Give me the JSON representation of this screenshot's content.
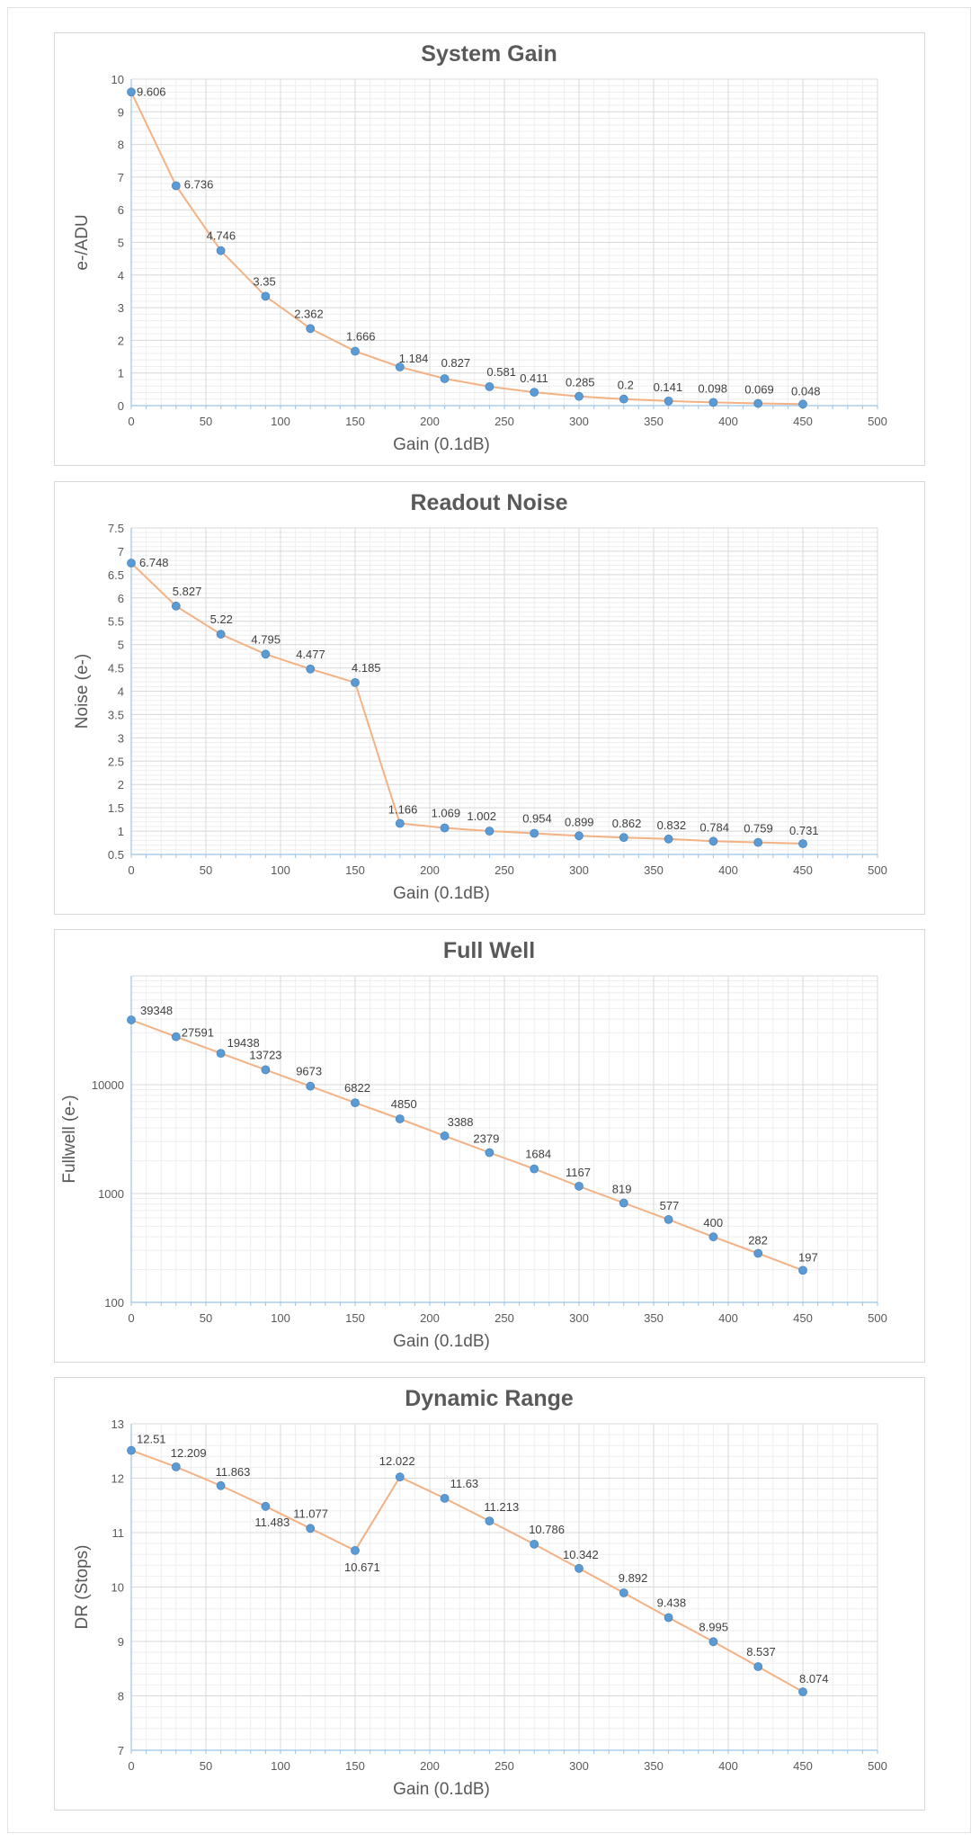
{
  "colors": {
    "line": "#f4b183",
    "marker": "#5b9bd5",
    "major_grid": "#d9d9d9",
    "minor_grid": "#eeeeee",
    "axis": "#9dc3e6",
    "text": "#595959"
  },
  "chart_data": [
    {
      "type": "line",
      "title": "System Gain",
      "xlabel": "Gain (0.1dB)",
      "ylabel": "e-/ADU",
      "yscale": "linear",
      "xlim": [
        0,
        500
      ],
      "ylim": [
        0,
        10
      ],
      "xticks": [
        0,
        50,
        100,
        150,
        200,
        250,
        300,
        350,
        400,
        450,
        500
      ],
      "yticks": [
        0,
        1,
        2,
        3,
        4,
        5,
        6,
        7,
        8,
        9,
        10
      ],
      "grid": true,
      "x": [
        0,
        30,
        60,
        90,
        120,
        150,
        180,
        210,
        240,
        270,
        300,
        330,
        360,
        390,
        420,
        450
      ],
      "values": [
        9.606,
        6.736,
        4.746,
        3.35,
        2.362,
        1.666,
        1.184,
        0.827,
        0.581,
        0.411,
        0.285,
        0.2,
        0.141,
        0.098,
        0.069,
        0.048
      ],
      "labels": [
        "9.606",
        "6.736",
        "4.746",
        "3.35",
        "2.362",
        "1.666",
        "1.184",
        "0.827",
        "0.581",
        "0.411",
        "0.285",
        "0.2",
        "0.141",
        "0.098",
        "0.069",
        "0.048"
      ]
    },
    {
      "type": "line",
      "title": "Readout Noise",
      "xlabel": "Gain (0.1dB)",
      "ylabel": "Noise (e-)",
      "yscale": "linear",
      "xlim": [
        0,
        500
      ],
      "ylim": [
        0.5,
        7.5
      ],
      "xticks": [
        0,
        50,
        100,
        150,
        200,
        250,
        300,
        350,
        400,
        450,
        500
      ],
      "yticks": [
        0.5,
        1,
        1.5,
        2,
        2.5,
        3,
        3.5,
        4,
        4.5,
        5,
        5.5,
        6,
        6.5,
        7,
        7.5
      ],
      "grid": true,
      "x": [
        0,
        30,
        60,
        90,
        120,
        150,
        180,
        210,
        240,
        270,
        300,
        330,
        360,
        390,
        420,
        450
      ],
      "values": [
        6.748,
        5.827,
        5.22,
        4.795,
        4.477,
        4.185,
        1.166,
        1.069,
        1.002,
        0.954,
        0.899,
        0.862,
        0.832,
        0.784,
        0.759,
        0.731
      ],
      "labels": [
        "6.748",
        "5.827",
        "5.22",
        "4.795",
        "4.477",
        "4.185",
        "1.166",
        "1.069",
        "1.002",
        "0.954",
        "0.899",
        "0.862",
        "0.832",
        "0.784",
        "0.759",
        "0.731"
      ]
    },
    {
      "type": "line",
      "title": "Full Well",
      "xlabel": "Gain (0.1dB)",
      "ylabel": "Fullwell (e-)",
      "yscale": "log",
      "xlim": [
        0,
        500
      ],
      "ylim": [
        100,
        100000
      ],
      "xticks": [
        0,
        50,
        100,
        150,
        200,
        250,
        300,
        350,
        400,
        450,
        500
      ],
      "yticks": [
        100,
        1000,
        10000
      ],
      "grid": true,
      "x": [
        0,
        30,
        60,
        90,
        120,
        150,
        180,
        210,
        240,
        270,
        300,
        330,
        360,
        390,
        420,
        450
      ],
      "values": [
        39348,
        27591,
        19438,
        13723,
        9673,
        6822,
        4850,
        3388,
        2379,
        1684,
        1167,
        819,
        577,
        400,
        282,
        197
      ],
      "labels": [
        "39348",
        "27591",
        "19438",
        "13723",
        "9673",
        "6822",
        "4850",
        "3388",
        "2379",
        "1684",
        "1167",
        "819",
        "577",
        "400",
        "282",
        "197"
      ]
    },
    {
      "type": "line",
      "title": "Dynamic Range",
      "xlabel": "Gain (0.1dB)",
      "ylabel": "DR (Stops)",
      "yscale": "linear",
      "xlim": [
        0,
        500
      ],
      "ylim": [
        7,
        13
      ],
      "xticks": [
        0,
        50,
        100,
        150,
        200,
        250,
        300,
        350,
        400,
        450,
        500
      ],
      "yticks": [
        7,
        8,
        9,
        10,
        11,
        12,
        13
      ],
      "grid": true,
      "x": [
        0,
        30,
        60,
        90,
        120,
        150,
        180,
        210,
        240,
        270,
        300,
        330,
        360,
        390,
        420,
        450
      ],
      "values": [
        12.51,
        12.209,
        11.863,
        11.483,
        11.077,
        10.671,
        12.022,
        11.63,
        11.213,
        10.786,
        10.342,
        9.892,
        9.438,
        8.995,
        8.537,
        8.074
      ],
      "labels": [
        "12.51",
        "12.209",
        "11.863",
        "11.483",
        "11.077",
        "10.671",
        "12.022",
        "11.63",
        "11.213",
        "10.786",
        "10.342",
        "9.892",
        "9.438",
        "8.995",
        "8.537",
        "8.074"
      ]
    }
  ]
}
